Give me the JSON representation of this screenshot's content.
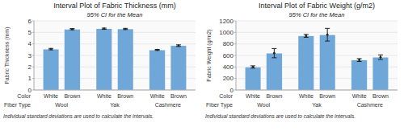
{
  "chart_data": [
    {
      "type": "bar",
      "title": "Interval Plot of Fabric Thickness (mm)",
      "subtitle": "95% CI for the Mean",
      "y_label": "Fabric Thickness (mm)",
      "category_label": "Color",
      "categories": [
        "White",
        "Brown",
        "White",
        "Brown",
        "White",
        "Brown"
      ],
      "group_label": "Fiber Type",
      "groups": [
        "Wool",
        "Yak",
        "Cashmere"
      ],
      "values": [
        3.55,
        5.28,
        5.32,
        5.3,
        3.48,
        3.85
      ],
      "errors": [
        0.06,
        0.05,
        0.05,
        0.05,
        0.04,
        0.07
      ],
      "color": "#6fa8d8",
      "ylim": [
        0,
        6
      ],
      "yticks": [
        0,
        1,
        2,
        3,
        4,
        5,
        6
      ],
      "grid": true,
      "footnote": "Individual standard deviations are used to calculate the intervals."
    },
    {
      "type": "bar",
      "title": "Interval Plot of Fabric Weight (g/m2)",
      "subtitle": "95% CI for the Mean",
      "y_label": "Fabric Weight (g/m2)",
      "category_label": "Color",
      "categories": [
        "White",
        "Brown",
        "White",
        "Brown",
        "White",
        "Brown"
      ],
      "group_label": "Fiber Type",
      "groups": [
        "Wool",
        "Yak",
        "Cashmere"
      ],
      "values": [
        400,
        640,
        940,
        960,
        520,
        570
      ],
      "errors": [
        20,
        80,
        25,
        110,
        25,
        40
      ],
      "color": "#6fa8d8",
      "ylim": [
        0,
        1200
      ],
      "yticks": [
        0,
        200,
        400,
        600,
        800,
        1000,
        1200
      ],
      "grid": true,
      "footnote": "Individual standard deviations are used to calculate the intervals."
    }
  ]
}
